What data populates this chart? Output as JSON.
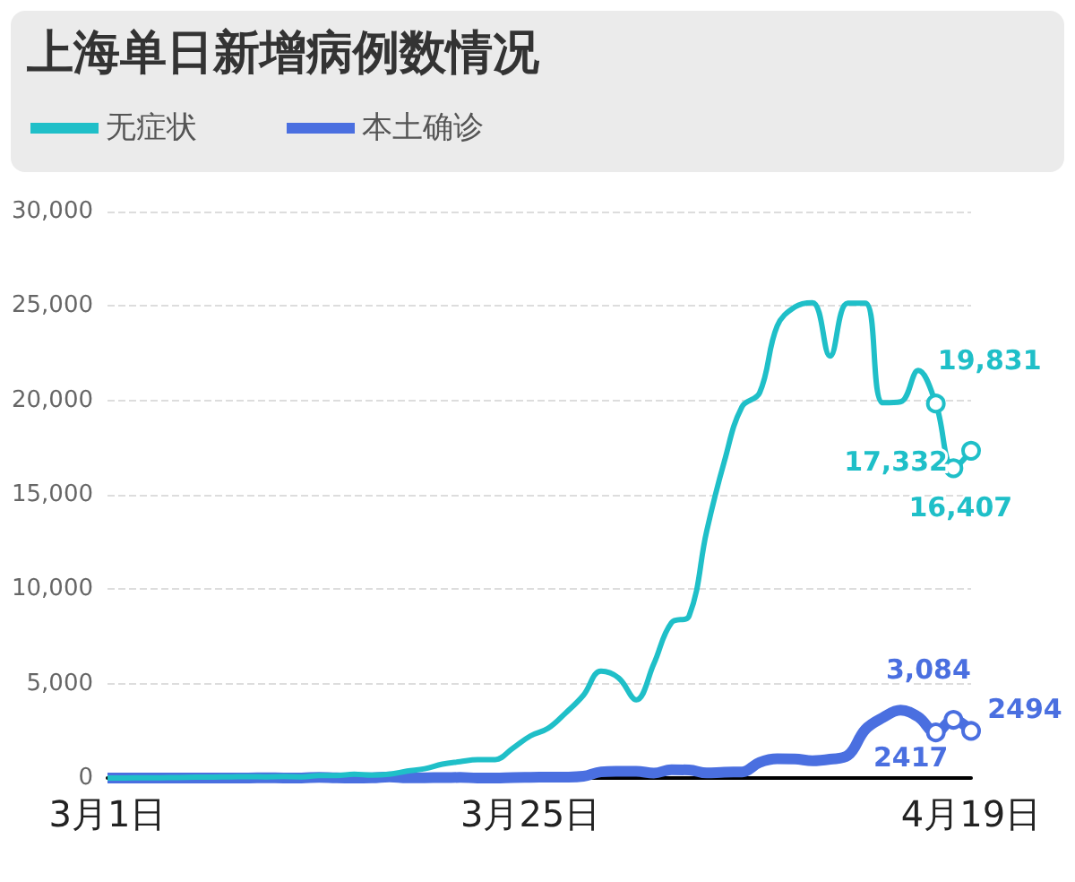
{
  "chart_data": {
    "type": "line",
    "title": "上海单日新增病例数情况",
    "categories": [
      "3月1日",
      null,
      null,
      null,
      null,
      null,
      null,
      null,
      null,
      null,
      null,
      null,
      null,
      null,
      null,
      null,
      null,
      null,
      null,
      null,
      null,
      null,
      null,
      null,
      "3月25日",
      null,
      null,
      null,
      null,
      null,
      null,
      null,
      null,
      null,
      null,
      null,
      null,
      null,
      null,
      null,
      null,
      null,
      null,
      null,
      null,
      null,
      null,
      null,
      null,
      "4月19日"
    ],
    "series": [
      {
        "name": "无症状",
        "color": "#1fbfc8",
        "values": [
          1,
          5,
          14,
          16,
          28,
          45,
          51,
          62,
          76,
          64,
          78,
          64,
          128,
          130,
          197,
          150,
          203,
          366,
          492,
          734,
          865,
          977,
          979,
          1580,
          2231,
          2631,
          3450,
          4381,
          5656,
          5298,
          4144,
          6051,
          8226,
          8581,
          13086,
          16766,
          19660,
          20398,
          23937,
          24944,
          25173,
          22348,
          25141,
          25146,
          19872,
          19923,
          21582,
          19831,
          16407,
          17332
        ],
        "value_labels": [
          null,
          null,
          null,
          null,
          null,
          null,
          null,
          null,
          null,
          null,
          null,
          null,
          null,
          null,
          null,
          null,
          null,
          null,
          null,
          null,
          null,
          null,
          null,
          null,
          null,
          null,
          null,
          null,
          null,
          null,
          null,
          null,
          null,
          null,
          null,
          null,
          null,
          null,
          null,
          null,
          null,
          null,
          null,
          null,
          null,
          null,
          null,
          "19,831",
          "16,407",
          "17,332"
        ]
      },
      {
        "name": "本土确诊",
        "color": "#4a6fe0",
        "values": [
          1,
          3,
          2,
          3,
          0,
          3,
          3,
          3,
          4,
          11,
          5,
          1,
          41,
          9,
          5,
          8,
          57,
          8,
          17,
          24,
          31,
          4,
          4,
          29,
          38,
          45,
          50,
          96,
          326,
          355,
          358,
          260,
          438,
          425,
          268,
          311,
          322,
          824,
          1015,
          1006,
          914,
          994,
          1189,
          2573,
          3200,
          3590,
          3238,
          2417,
          3084,
          2494
        ],
        "value_labels": [
          null,
          null,
          null,
          null,
          null,
          null,
          null,
          null,
          null,
          null,
          null,
          null,
          null,
          null,
          null,
          null,
          null,
          null,
          null,
          null,
          null,
          null,
          null,
          null,
          null,
          null,
          null,
          null,
          null,
          null,
          null,
          null,
          null,
          null,
          null,
          null,
          null,
          null,
          null,
          null,
          null,
          null,
          null,
          null,
          null,
          null,
          null,
          "2417",
          "3,084",
          "2494"
        ]
      }
    ],
    "ylim": [
      0,
      30000
    ],
    "yticks": [
      {
        "value": 0,
        "label": "0"
      },
      {
        "value": 5000,
        "label": "5,000"
      },
      {
        "value": 10000,
        "label": "10,000"
      },
      {
        "value": 15000,
        "label": "15,000"
      },
      {
        "value": 20000,
        "label": "20,000"
      },
      {
        "value": 25000,
        "label": "25,000"
      },
      {
        "value": 30000,
        "label": "30,000"
      }
    ],
    "grid": "y",
    "legend": "top left"
  }
}
